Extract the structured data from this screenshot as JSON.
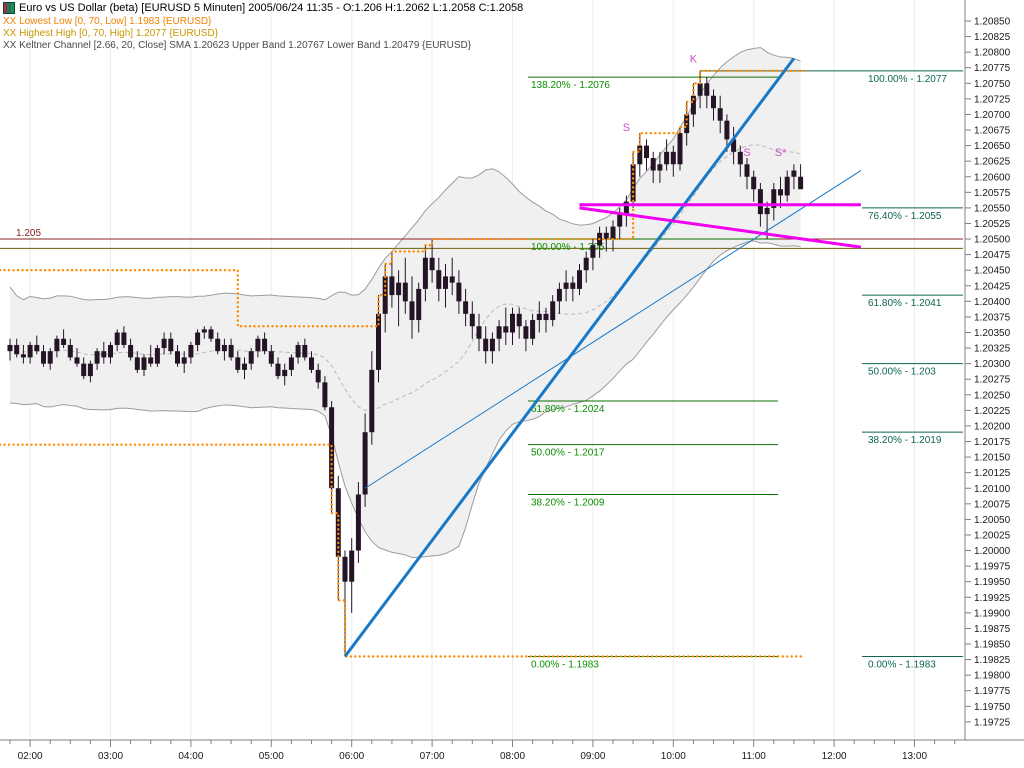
{
  "window": {
    "title": "Euro vs US Dollar (beta) [EURUSD 5 Minuten] 2005/06/24 11:35 - O:1.206 H:1.2062 L:1.2058 C:1.2058"
  },
  "legend": {
    "lowest_low": "XX Lowest Low [0, 70, Low] 1.1983 {EURUSD}",
    "highest_high": "XX Highest High [0, 70, High] 1.2077 {EURUSD}",
    "keltner": "XX Keltner Channel [2.66, 20, Close] SMA 1.20623 Upper Band 1.20767 Lower Band 1.20479 {EURUSD}"
  },
  "colors": {
    "candle": "#241426",
    "band_fill": "#f0f0f0",
    "band_line": "#9c9c9c",
    "sma_line": "#b8b8b8",
    "donchian": "#ff8a00",
    "fib_left_line": "#0a7000",
    "fib_left_text": "#0a9000",
    "fib_right": "#0e6655",
    "annotation": "#cc55cc",
    "axis": "#808080",
    "grid": "#ececec",
    "text": "#1a1a1a"
  },
  "chart_data": {
    "type": "candlestick",
    "symbol": "EURUSD",
    "interval": "5 Minuten",
    "timestamp": "2005/06/24 11:35",
    "ohlc_current": {
      "open": 1.206,
      "high": 1.2062,
      "low": 1.2058,
      "close": 1.2058
    },
    "y_axis": {
      "max": 1.2085,
      "min": 1.19725,
      "step": 0.00025
    },
    "x_axis": {
      "labels": [
        "02:00",
        "03:00",
        "04:00",
        "05:00",
        "06:00",
        "07:00",
        "08:00",
        "09:00",
        "10:00",
        "11:00",
        "12:00",
        "13:00"
      ]
    },
    "keltner": {
      "period": 20,
      "mult": 2.66,
      "sma_last": 1.20623,
      "upper_last": 1.20767,
      "lower_last": 1.20479
    },
    "donchian_high_steps": [
      [
        "01:45",
        1.2045
      ],
      [
        "04:35",
        1.2036
      ],
      [
        "06:20",
        1.2041
      ],
      [
        "06:25",
        1.2046
      ],
      [
        "06:30",
        1.2048
      ],
      [
        "06:55",
        1.2049
      ],
      [
        "07:00",
        1.205
      ],
      [
        "09:30",
        1.2064
      ],
      [
        "09:35",
        1.2067
      ],
      [
        "10:05",
        1.2068
      ],
      [
        "10:10",
        1.2072
      ],
      [
        "10:15",
        1.2075
      ],
      [
        "10:20",
        1.2077
      ]
    ],
    "donchian_low_steps": [
      [
        "01:45",
        1.2017
      ],
      [
        "05:45",
        1.2006
      ],
      [
        "05:50",
        1.1992
      ],
      [
        "05:55",
        1.1983
      ]
    ],
    "fib_left": [
      {
        "label": "138.20% - 1.2076",
        "price": 1.2076
      },
      {
        "label": "100.00% - 1.205",
        "price": 1.205
      },
      {
        "label": "61.80% - 1.2024",
        "price": 1.2024
      },
      {
        "label": "50.00% - 1.2017",
        "price": 1.2017
      },
      {
        "label": "38.20% - 1.2009",
        "price": 1.2009
      },
      {
        "label": "0.00% - 1.1983",
        "price": 1.1983
      }
    ],
    "fib_right": [
      {
        "label": "100.00% - 1.2077",
        "price": 1.2077,
        "extended": true
      },
      {
        "label": "76.40% - 1.2055",
        "price": 1.2055
      },
      {
        "label": "61.80% - 1.2041",
        "price": 1.2041
      },
      {
        "label": "50.00% - 1.203",
        "price": 1.203
      },
      {
        "label": "38.20% - 1.2019",
        "price": 1.2019
      },
      {
        "label": "0.00% - 1.1983",
        "price": 1.1983
      }
    ],
    "horizontal_lines": [
      {
        "price": 1.205,
        "label": "1.205",
        "color": "#8b2020"
      },
      {
        "price": 1.20485,
        "label": "",
        "color": "#6e5f00"
      }
    ],
    "trendlines": [
      {
        "name": "trendline-steep",
        "x1": "05:55",
        "p1": 1.1983,
        "x2": "11:30",
        "p2": 1.2079,
        "w": 3,
        "color": "#1879c8"
      },
      {
        "name": "trendline-shallow",
        "x1": "06:10",
        "p1": 1.201,
        "x2": "12:20",
        "p2": 1.2061,
        "w": 1,
        "color": "#1879c8"
      },
      {
        "name": "horizontal-resistance-line",
        "x1": "08:50",
        "p1": 1.20555,
        "x2": "12:20",
        "p2": 1.20555,
        "w": 3,
        "color": "#f000f0"
      },
      {
        "name": "descending-support-line",
        "x1": "08:50",
        "p1": 1.2055,
        "x2": "12:20",
        "p2": 1.20487,
        "w": 3,
        "color": "#f000f0"
      }
    ],
    "annotations": [
      {
        "text": "S",
        "x": "09:25",
        "price": 1.2068
      },
      {
        "text": "K",
        "x": "10:15",
        "price": 1.2079
      },
      {
        "text": "S",
        "x": "10:55",
        "price": 1.2064
      },
      {
        "text": "S*",
        "x": "11:20",
        "price": 1.2064
      }
    ],
    "candles": [
      [
        "01:45",
        1.2032,
        1.2034,
        1.20305,
        1.2033
      ],
      [
        "01:50",
        1.2033,
        1.2034,
        1.2031,
        1.20315
      ],
      [
        "01:55",
        1.20315,
        1.2033,
        1.203,
        1.2031
      ],
      [
        "02:00",
        1.2031,
        1.20335,
        1.203,
        1.2033
      ],
      [
        "02:05",
        1.2033,
        1.20345,
        1.20315,
        1.2032
      ],
      [
        "02:10",
        1.2032,
        1.2033,
        1.20295,
        1.203
      ],
      [
        "02:15",
        1.203,
        1.20325,
        1.2029,
        1.2032
      ],
      [
        "02:20",
        1.2032,
        1.20345,
        1.2031,
        1.2034
      ],
      [
        "02:25",
        1.2034,
        1.20355,
        1.20325,
        1.2033
      ],
      [
        "02:30",
        1.2033,
        1.2034,
        1.20305,
        1.2031
      ],
      [
        "02:35",
        1.2031,
        1.20325,
        1.20295,
        1.203
      ],
      [
        "02:40",
        1.203,
        1.2031,
        1.20275,
        1.2028
      ],
      [
        "02:45",
        1.2028,
        1.20305,
        1.2027,
        1.203
      ],
      [
        "02:50",
        1.203,
        1.20325,
        1.2029,
        1.2032
      ],
      [
        "02:55",
        1.2032,
        1.20335,
        1.203,
        1.2031
      ],
      [
        "03:00",
        1.2031,
        1.20335,
        1.203,
        1.2033
      ],
      [
        "03:05",
        1.2033,
        1.20355,
        1.2032,
        1.2035
      ],
      [
        "03:10",
        1.2035,
        1.2036,
        1.20325,
        1.2033
      ],
      [
        "03:15",
        1.2033,
        1.2034,
        1.20305,
        1.2031
      ],
      [
        "03:20",
        1.2031,
        1.2032,
        1.20285,
        1.2029
      ],
      [
        "03:25",
        1.2029,
        1.20315,
        1.2028,
        1.2031
      ],
      [
        "03:30",
        1.2031,
        1.2033,
        1.20295,
        1.203
      ],
      [
        "03:35",
        1.203,
        1.2033,
        1.20295,
        1.20325
      ],
      [
        "03:40",
        1.20325,
        1.2035,
        1.20315,
        1.2034
      ],
      [
        "03:45",
        1.2034,
        1.2035,
        1.20315,
        1.2032
      ],
      [
        "03:50",
        1.2032,
        1.2033,
        1.20295,
        1.203
      ],
      [
        "03:55",
        1.203,
        1.2032,
        1.20285,
        1.2031
      ],
      [
        "04:00",
        1.2031,
        1.20335,
        1.203,
        1.2033
      ],
      [
        "04:05",
        1.2033,
        1.20355,
        1.2032,
        1.2035
      ],
      [
        "04:10",
        1.2035,
        1.2036,
        1.2034,
        1.20355
      ],
      [
        "04:15",
        1.20355,
        1.2036,
        1.20335,
        1.2034
      ],
      [
        "04:20",
        1.2034,
        1.2035,
        1.20315,
        1.2032
      ],
      [
        "04:25",
        1.2032,
        1.2034,
        1.20305,
        1.2033
      ],
      [
        "04:30",
        1.2033,
        1.2034,
        1.20305,
        1.2031
      ],
      [
        "04:35",
        1.2031,
        1.2032,
        1.20285,
        1.2029
      ],
      [
        "04:40",
        1.2029,
        1.2031,
        1.20275,
        1.203
      ],
      [
        "04:45",
        1.203,
        1.20325,
        1.2029,
        1.2032
      ],
      [
        "04:50",
        1.2032,
        1.20345,
        1.2031,
        1.2034
      ],
      [
        "04:55",
        1.2034,
        1.2035,
        1.20315,
        1.2032
      ],
      [
        "05:00",
        1.2032,
        1.2033,
        1.20295,
        1.203
      ],
      [
        "05:05",
        1.203,
        1.2031,
        1.20275,
        1.2028
      ],
      [
        "05:10",
        1.2028,
        1.203,
        1.20265,
        1.2029
      ],
      [
        "05:15",
        1.2029,
        1.20315,
        1.2028,
        1.2031
      ],
      [
        "05:20",
        1.2031,
        1.20335,
        1.203,
        1.2033
      ],
      [
        "05:25",
        1.2033,
        1.2034,
        1.20305,
        1.2031
      ],
      [
        "05:30",
        1.2031,
        1.2032,
        1.20285,
        1.2029
      ],
      [
        "05:35",
        1.2029,
        1.203,
        1.2026,
        1.2027
      ],
      [
        "05:40",
        1.2027,
        1.2028,
        1.20225,
        1.2023
      ],
      [
        "05:45",
        1.2023,
        1.2024,
        1.2006,
        1.201
      ],
      [
        "05:50",
        1.201,
        1.2012,
        1.1992,
        1.1999
      ],
      [
        "05:55",
        1.1999,
        1.2,
        1.1983,
        1.1995
      ],
      [
        "06:00",
        1.1995,
        1.2002,
        1.199,
        1.2
      ],
      [
        "06:05",
        1.2,
        1.2011,
        1.1998,
        1.2009
      ],
      [
        "06:10",
        1.2009,
        1.2022,
        1.2007,
        1.2019
      ],
      [
        "06:15",
        1.2019,
        1.2032,
        1.2017,
        1.2029
      ],
      [
        "06:20",
        1.2029,
        1.2041,
        1.2027,
        1.2038
      ],
      [
        "06:25",
        1.2038,
        1.2046,
        1.2035,
        1.2044
      ],
      [
        "06:30",
        1.2044,
        1.2048,
        1.2039,
        1.2041
      ],
      [
        "06:35",
        1.2041,
        1.2045,
        1.2036,
        1.2043
      ],
      [
        "06:40",
        1.2043,
        1.2047,
        1.2038,
        1.204
      ],
      [
        "06:45",
        1.204,
        1.2044,
        1.2034,
        1.2037
      ],
      [
        "06:50",
        1.2037,
        1.2043,
        1.2035,
        1.2042
      ],
      [
        "06:55",
        1.2042,
        1.2049,
        1.204,
        1.2047
      ],
      [
        "07:00",
        1.2047,
        1.205,
        1.2043,
        1.2045
      ],
      [
        "07:05",
        1.2045,
        1.2047,
        1.204,
        1.2042
      ],
      [
        "07:10",
        1.2042,
        1.2046,
        1.2039,
        1.2044
      ],
      [
        "07:15",
        1.2044,
        1.2047,
        1.2041,
        1.2043
      ],
      [
        "07:20",
        1.2043,
        1.2045,
        1.2038,
        1.204
      ],
      [
        "07:25",
        1.204,
        1.2042,
        1.2036,
        1.2038
      ],
      [
        "07:30",
        1.2038,
        1.204,
        1.2034,
        1.2036
      ],
      [
        "07:35",
        1.2036,
        1.2038,
        1.2032,
        1.2034
      ],
      [
        "07:40",
        1.2034,
        1.2036,
        1.203,
        1.2032
      ],
      [
        "07:45",
        1.2032,
        1.2035,
        1.203,
        1.2034
      ],
      [
        "07:50",
        1.2034,
        1.2037,
        1.2032,
        1.2036
      ],
      [
        "07:55",
        1.2036,
        1.2039,
        1.2033,
        1.2035
      ],
      [
        "08:00",
        1.2035,
        1.2039,
        1.2033,
        1.2038
      ],
      [
        "08:05",
        1.2038,
        1.2039,
        1.2034,
        1.2036
      ],
      [
        "08:10",
        1.2036,
        1.2037,
        1.2032,
        1.2034
      ],
      [
        "08:15",
        1.2034,
        1.2038,
        1.2033,
        1.2037
      ],
      [
        "08:20",
        1.2037,
        1.204,
        1.2035,
        1.2038
      ],
      [
        "08:25",
        1.2038,
        1.2039,
        1.2035,
        1.2037
      ],
      [
        "08:30",
        1.2037,
        1.2041,
        1.2036,
        1.204
      ],
      [
        "08:35",
        1.204,
        1.2043,
        1.2038,
        1.2042
      ],
      [
        "08:40",
        1.2042,
        1.2045,
        1.204,
        1.2043
      ],
      [
        "08:45",
        1.2043,
        1.2044,
        1.204,
        1.2042
      ],
      [
        "08:50",
        1.2042,
        1.2046,
        1.2041,
        1.2045
      ],
      [
        "08:55",
        1.2045,
        1.2048,
        1.2043,
        1.2047
      ],
      [
        "09:00",
        1.2047,
        1.205,
        1.2045,
        1.2049
      ],
      [
        "09:05",
        1.2049,
        1.2052,
        1.2047,
        1.2051
      ],
      [
        "09:10",
        1.2051,
        1.2052,
        1.2048,
        1.205
      ],
      [
        "09:15",
        1.205,
        1.2053,
        1.2048,
        1.2052
      ],
      [
        "09:20",
        1.2052,
        1.2055,
        1.205,
        1.2054
      ],
      [
        "09:25",
        1.2054,
        1.2057,
        1.2052,
        1.2056
      ],
      [
        "09:30",
        1.2056,
        1.2064,
        1.2055,
        1.2062
      ],
      [
        "09:35",
        1.2062,
        1.2067,
        1.206,
        1.2065
      ],
      [
        "09:40",
        1.2065,
        1.2066,
        1.2061,
        1.2063
      ],
      [
        "09:45",
        1.2063,
        1.2064,
        1.2059,
        1.2061
      ],
      [
        "09:50",
        1.2061,
        1.2064,
        1.2059,
        1.2062
      ],
      [
        "09:55",
        1.2062,
        1.2066,
        1.2061,
        1.2064
      ],
      [
        "10:00",
        1.2064,
        1.2065,
        1.206,
        1.2062
      ],
      [
        "10:05",
        1.2062,
        1.2068,
        1.2061,
        1.2067
      ],
      [
        "10:10",
        1.2067,
        1.2072,
        1.2065,
        1.207
      ],
      [
        "10:15",
        1.207,
        1.2075,
        1.2068,
        1.2073
      ],
      [
        "10:20",
        1.2073,
        1.2077,
        1.2071,
        1.2075
      ],
      [
        "10:25",
        1.2075,
        1.2076,
        1.2071,
        1.2073
      ],
      [
        "10:30",
        1.2073,
        1.2074,
        1.2069,
        1.2071
      ],
      [
        "10:35",
        1.2071,
        1.2073,
        1.2067,
        1.2069
      ],
      [
        "10:40",
        1.2069,
        1.207,
        1.2064,
        1.2066
      ],
      [
        "10:45",
        1.2066,
        1.2068,
        1.2062,
        1.2064
      ],
      [
        "10:50",
        1.2064,
        1.2065,
        1.206,
        1.2062
      ],
      [
        "10:55",
        1.2062,
        1.2063,
        1.2058,
        1.206
      ],
      [
        "11:00",
        1.206,
        1.2061,
        1.2056,
        1.2058
      ],
      [
        "11:05",
        1.2058,
        1.2059,
        1.2052,
        1.2054
      ],
      [
        "11:10",
        1.2054,
        1.2056,
        1.205,
        1.2055
      ],
      [
        "11:15",
        1.2055,
        1.2059,
        1.2053,
        1.2058
      ],
      [
        "11:20",
        1.2058,
        1.206,
        1.2055,
        1.2057
      ],
      [
        "11:25",
        1.2057,
        1.2061,
        1.2056,
        1.206
      ],
      [
        "11:30",
        1.206,
        1.2062,
        1.2058,
        1.2061
      ],
      [
        "11:35",
        1.206,
        1.2062,
        1.2058,
        1.2058
      ]
    ]
  }
}
